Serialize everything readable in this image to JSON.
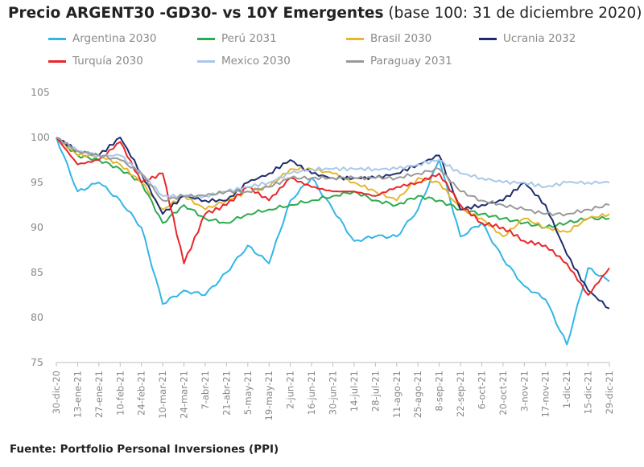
{
  "title": {
    "main": "Precio ARGENT30 -GD30- vs 10Y Emergentes",
    "sub": "(base 100: 31 de diciembre 2020)"
  },
  "source": "Fuente: Portfolio Personal Inversiones (PPI)",
  "chart_data": {
    "type": "line",
    "title": "Precio ARGENT30 -GD30- vs 10Y Emergentes (base 100: 31 de diciembre 2020)",
    "xlabel": "",
    "ylabel": "",
    "ylim": [
      75,
      105
    ],
    "yticks": [
      75,
      80,
      85,
      90,
      95,
      100,
      105
    ],
    "grid": false,
    "legend_position": "top",
    "categories": [
      "30-dic-20",
      "13-ene-21",
      "27-ene-21",
      "10-feb-21",
      "24-feb-21",
      "10-mar-21",
      "24-mar-21",
      "7-abr-21",
      "21-abr-21",
      "5-may-21",
      "19-may-21",
      "2-jun-21",
      "16-jun-21",
      "30-jun-21",
      "14-jul-21",
      "28-jul-21",
      "11-ago-21",
      "25-ago-21",
      "8-sep-21",
      "22-sep-21",
      "6-oct-21",
      "20-oct-21",
      "3-nov-21",
      "17-nov-21",
      "1-dic-21",
      "15-dic-21",
      "29-dic-21"
    ],
    "series": [
      {
        "name": "Argentina 2030",
        "color": "#33b6e6",
        "values": [
          100,
          94,
          95,
          93,
          90,
          81.5,
          83,
          82.5,
          85,
          88,
          86,
          93,
          95.5,
          92,
          88.5,
          89,
          89,
          92,
          97.5,
          89,
          90.5,
          86.5,
          83.5,
          82,
          77,
          85.5,
          84
        ]
      },
      {
        "name": "Perú 2031",
        "color": "#2eaa4e",
        "values": [
          100,
          98,
          97.5,
          96.5,
          95,
          90.5,
          92.5,
          91,
          90.5,
          91.5,
          92,
          92.5,
          93,
          93.5,
          94,
          93,
          92.5,
          93.5,
          93,
          92,
          91.5,
          91,
          90.5,
          90,
          90.5,
          91,
          91
        ]
      },
      {
        "name": "Brasil 2030",
        "color": "#e6b730",
        "values": [
          100,
          98,
          98,
          97,
          95,
          92,
          93.5,
          92,
          93,
          94,
          94.5,
          96.5,
          96.5,
          96,
          95,
          94,
          93,
          95.5,
          95,
          92,
          91,
          89,
          91,
          90,
          89.5,
          91,
          91.5
        ]
      },
      {
        "name": "Ucrania 2032",
        "color": "#1f2d6e",
        "values": [
          100,
          98.5,
          98,
          100,
          96,
          91.5,
          93.5,
          93,
          93,
          95,
          96,
          97.5,
          96,
          95.5,
          95.5,
          95.5,
          96,
          97,
          98,
          92,
          92.5,
          93,
          95,
          92.5,
          87,
          83,
          81
        ]
      },
      {
        "name": "Turquía 2030",
        "color": "#e8262a",
        "values": [
          100,
          97,
          97.5,
          99.5,
          95,
          96,
          86,
          91.5,
          92.5,
          94.5,
          93,
          95.5,
          94.5,
          94,
          94,
          93.5,
          94.5,
          95,
          96,
          92.5,
          90.5,
          90,
          88.5,
          88,
          86,
          82.5,
          85.5
        ]
      },
      {
        "name": "Mexico 2030",
        "color": "#a9c8e8",
        "values": [
          100,
          98.5,
          98,
          98,
          96,
          93.5,
          93.5,
          93.5,
          94,
          94.5,
          95,
          96,
          96.5,
          96.5,
          96.5,
          96.5,
          96.5,
          97,
          97.5,
          96,
          95.5,
          95,
          95,
          94.5,
          95,
          95,
          95
        ]
      },
      {
        "name": "Paraguay 2031",
        "color": "#9a9a9a",
        "values": [
          100,
          98.5,
          98,
          97.5,
          96,
          93,
          93.5,
          93.5,
          94,
          94,
          94.5,
          95.5,
          95.5,
          95.5,
          95.5,
          95.5,
          95.5,
          96,
          96.5,
          94,
          93,
          92.5,
          92,
          91.5,
          91.5,
          92,
          92.5
        ]
      }
    ]
  }
}
